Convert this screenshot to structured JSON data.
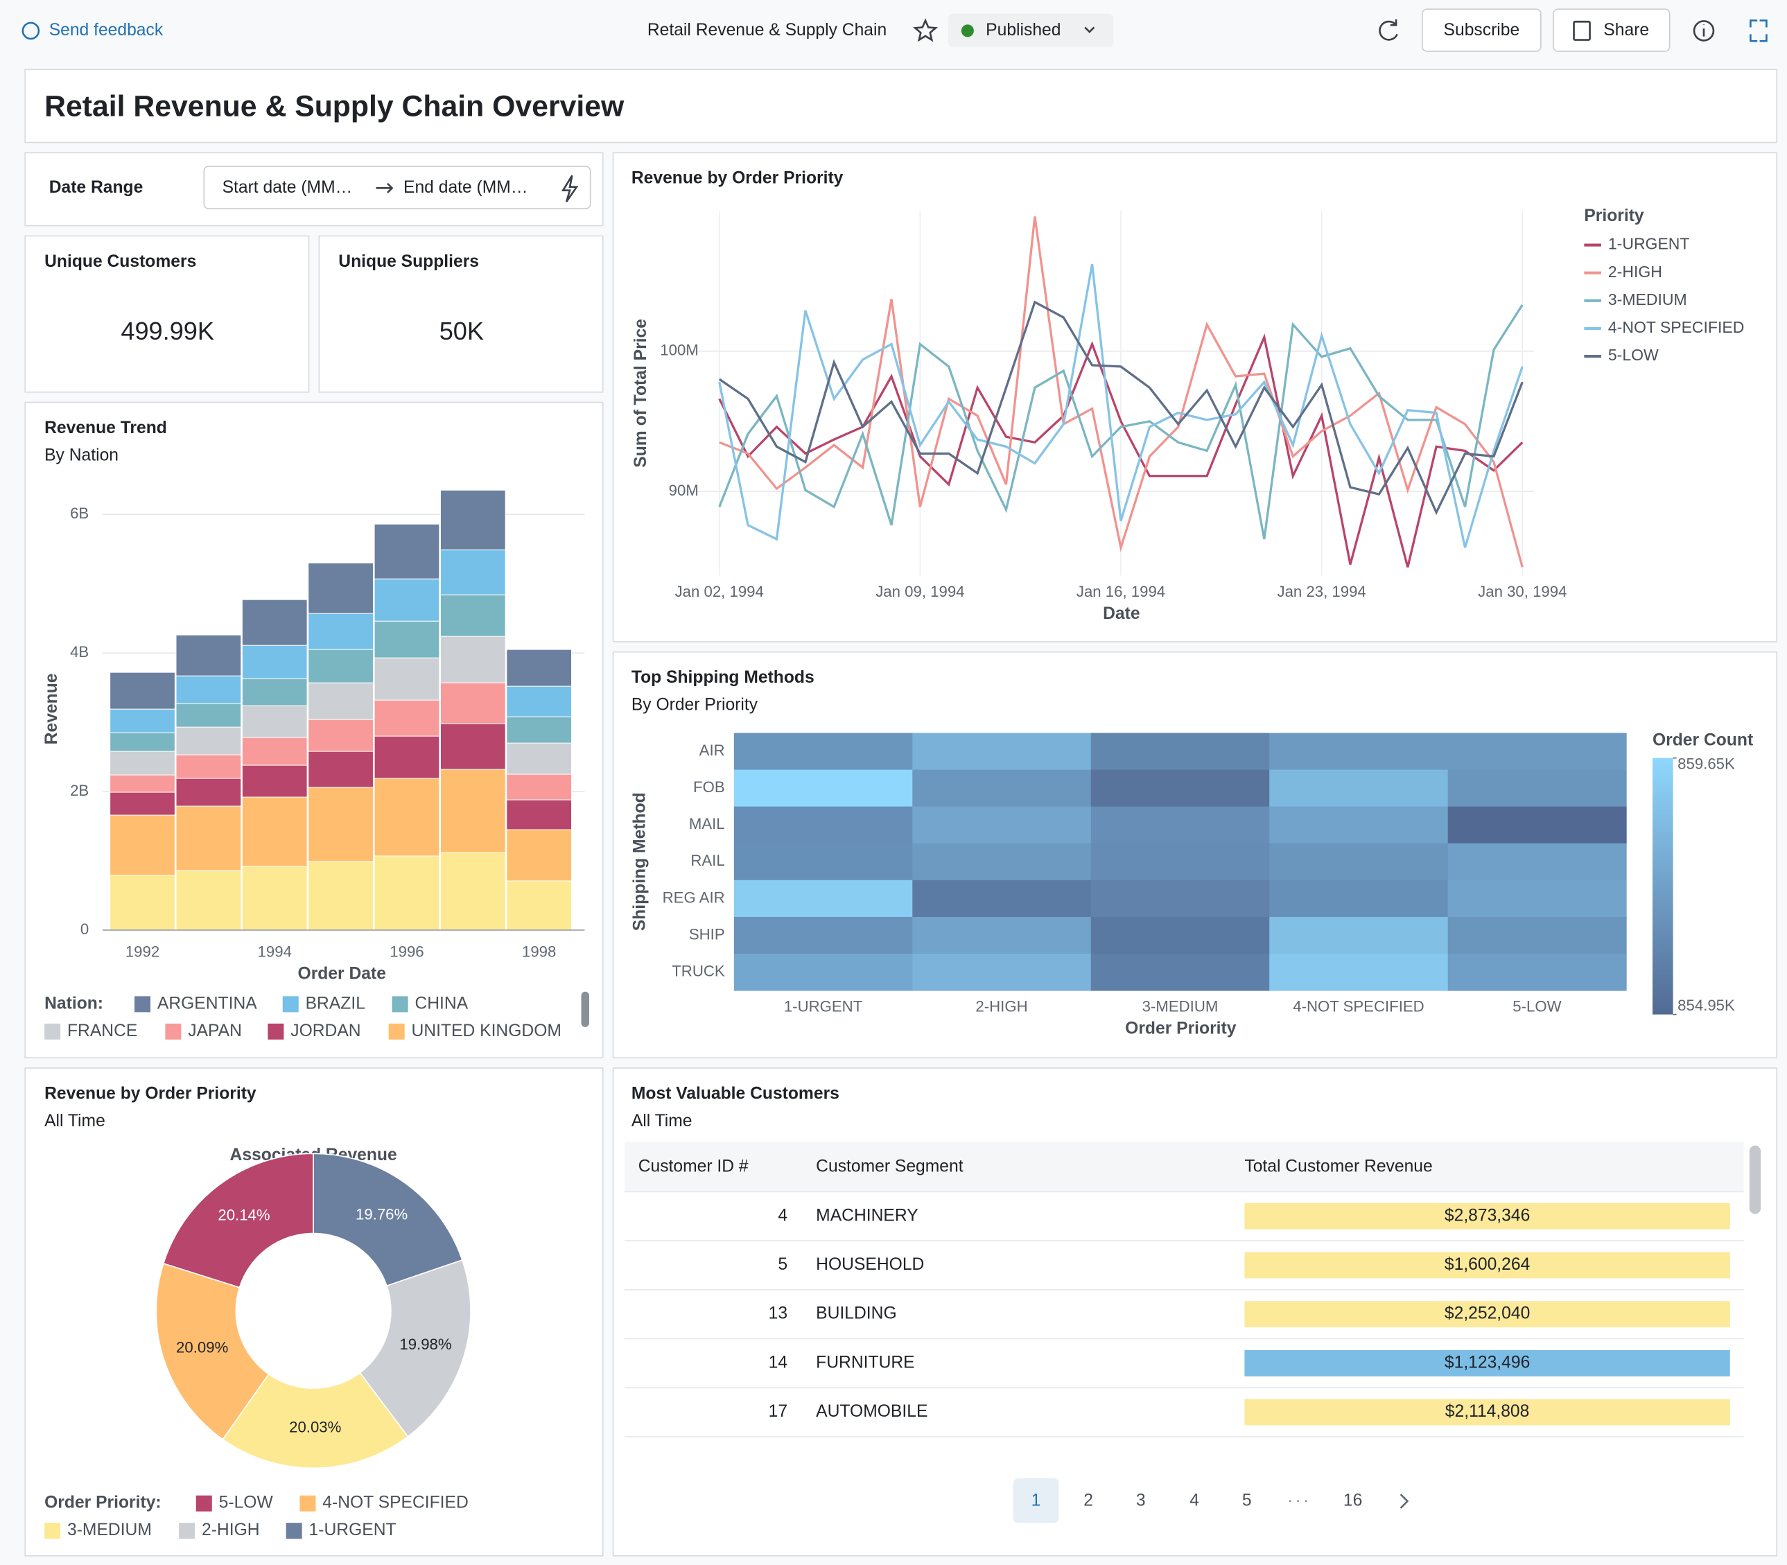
{
  "toolbar": {
    "feedback": "Send feedback",
    "dashboard_name": "Retail Revenue & Supply Chain",
    "status": "Published",
    "subscribe": "Subscribe",
    "share": "Share"
  },
  "title": "Retail Revenue & Supply Chain Overview",
  "filter": {
    "label": "Date Range",
    "start": "Start date (MM…",
    "end": "End date (MM…"
  },
  "counters": [
    {
      "title": "Unique Customers",
      "value": "499.99K"
    },
    {
      "title": "Unique Suppliers",
      "value": "50K"
    }
  ],
  "chart_data": [
    {
      "type": "stacked_bar",
      "title": "Revenue Trend",
      "subtitle": "By Nation",
      "x_label": "Order Date",
      "y_label": "Revenue",
      "legend_title": "Nation:",
      "categories": [
        "1992",
        null,
        "1994",
        null,
        "1996",
        null,
        "1998"
      ],
      "series": [
        {
          "color": "#fde992",
          "values": [
            0.79,
            0.86,
            0.92,
            0.99,
            1.07,
            1.12,
            0.71
          ]
        },
        {
          "name": "UNITED KINGDOM",
          "color": "#ffbe6f",
          "values": [
            0.87,
            0.93,
            1.0,
            1.07,
            1.12,
            1.2,
            0.74
          ]
        },
        {
          "name": "JORDAN",
          "color": "#b8456b",
          "values": [
            0.33,
            0.4,
            0.46,
            0.52,
            0.61,
            0.66,
            0.43
          ]
        },
        {
          "name": "JAPAN",
          "color": "#f89a9a",
          "values": [
            0.25,
            0.34,
            0.4,
            0.46,
            0.52,
            0.59,
            0.37
          ]
        },
        {
          "name": "FRANCE",
          "color": "#ccd0d4",
          "values": [
            0.34,
            0.4,
            0.46,
            0.53,
            0.61,
            0.67,
            0.45
          ]
        },
        {
          "name": "CHINA",
          "color": "#7ab6c2",
          "values": [
            0.27,
            0.34,
            0.39,
            0.48,
            0.53,
            0.6,
            0.38
          ]
        },
        {
          "name": "BRAZIL",
          "color": "#75c0e8",
          "values": [
            0.34,
            0.4,
            0.48,
            0.52,
            0.61,
            0.65,
            0.44
          ]
        },
        {
          "name": "ARGENTINA",
          "color": "#6b7f9e",
          "values": [
            0.53,
            0.59,
            0.66,
            0.73,
            0.79,
            0.86,
            0.53
          ]
        }
      ],
      "ylim": [
        0,
        6.4
      ],
      "yticks": [
        0,
        {
          "value": 2,
          "label": "2B"
        },
        {
          "value": 4,
          "label": "4B"
        },
        {
          "value": 6,
          "label": "6B"
        }
      ],
      "grid": true
    },
    {
      "type": "line",
      "title": "Revenue by Order Priority",
      "x_label": "Date",
      "y_label": "Sum of Total Price",
      "legend_title": "Priority",
      "x": [
        "1994-01-02",
        "1994-01-03",
        "1994-01-04",
        "1994-01-05",
        "1994-01-06",
        "1994-01-07",
        "1994-01-08",
        "1994-01-09",
        "1994-01-10",
        "1994-01-11",
        "1994-01-12",
        "1994-01-13",
        "1994-01-14",
        "1994-01-15",
        "1994-01-16",
        "1994-01-17",
        "1994-01-18",
        "1994-01-19",
        "1994-01-20",
        "1994-01-21",
        "1994-01-22",
        "1994-01-23",
        "1994-01-24",
        "1994-01-25",
        "1994-01-26",
        "1994-01-27",
        "1994-01-28",
        "1994-01-29",
        "1994-01-30"
      ],
      "series": [
        {
          "name": "1-URGENT",
          "color": "#b8456b",
          "values": [
            96.6,
            92.5,
            94.6,
            92.7,
            93.7,
            94.6,
            98.2,
            92.5,
            90.5,
            97.4,
            93.9,
            93.5,
            95.4,
            100.5,
            95.0,
            91.1,
            91.1,
            91.1,
            96.2,
            101.0,
            91.1,
            95.4,
            84.8,
            92.4,
            84.6,
            93.2,
            92.9,
            91.5,
            93.5
          ]
        },
        {
          "name": "2-HIGH",
          "color": "#f0938f",
          "values": [
            93.5,
            92.7,
            90.2,
            91.7,
            93.3,
            91.7,
            103.7,
            88.9,
            96.6,
            95.4,
            90.5,
            109.6,
            94.8,
            95.9,
            86.0,
            92.5,
            94.6,
            101.9,
            98.2,
            98.4,
            92.5,
            94.3,
            95.4,
            97.0,
            90.1,
            96.0,
            94.8,
            92.1,
            84.6
          ]
        },
        {
          "name": "3-MEDIUM",
          "color": "#7ab6c2",
          "values": [
            88.9,
            94.1,
            96.8,
            90.1,
            88.9,
            94.1,
            87.6,
            100.5,
            98.9,
            92.9,
            88.7,
            97.4,
            98.6,
            92.5,
            94.6,
            95.0,
            93.5,
            92.9,
            97.6,
            86.6,
            101.9,
            99.6,
            100.2,
            96.8,
            95.1,
            95.1,
            88.9,
            100.1,
            103.3
          ]
        },
        {
          "name": "4-NOT SPECIFIED",
          "color": "#86c3e6",
          "values": [
            97.8,
            87.6,
            86.6,
            102.9,
            96.6,
            99.4,
            100.5,
            93.3,
            96.4,
            93.7,
            93.2,
            92.0,
            94.8,
            106.2,
            87.9,
            94.6,
            95.6,
            95.1,
            95.5,
            97.8,
            93.3,
            101.1,
            94.8,
            91.3,
            95.8,
            95.6,
            86.0,
            92.9,
            98.9
          ]
        },
        {
          "name": "5-LOW",
          "color": "#5f6f88",
          "values": [
            98.0,
            96.6,
            93.2,
            92.1,
            99.2,
            94.6,
            96.4,
            92.7,
            92.7,
            91.3,
            97.4,
            103.5,
            102.4,
            99.0,
            98.9,
            97.4,
            94.8,
            97.2,
            93.2,
            97.4,
            94.6,
            97.6,
            90.3,
            89.8,
            93.1,
            88.5,
            92.7,
            92.5,
            97.8
          ]
        }
      ],
      "xlim": [
        "1994-01-01",
        "1994-01-31"
      ],
      "xticks": [
        {
          "value": "1994-01-02",
          "label": "Jan 02, 1994"
        },
        {
          "value": "1994-01-09",
          "label": "Jan 09, 1994"
        },
        {
          "value": "1994-01-16",
          "label": "Jan 16, 1994"
        },
        {
          "value": "1994-01-23",
          "label": "Jan 23, 1994"
        },
        {
          "value": "1994-01-30",
          "label": "Jan 30, 1994"
        }
      ],
      "ylim": [
        84,
        110
      ],
      "yticks": [
        {
          "value": 90,
          "label": "90M"
        },
        {
          "value": 100,
          "label": "100M"
        }
      ],
      "grid": true
    },
    {
      "type": "heatmap",
      "title": "Top Shipping Methods",
      "subtitle": "By Order Priority",
      "x_label": "Order Priority",
      "y_label": "Shipping Method",
      "legend_title": "Order Count",
      "x_categories": [
        "1-URGENT",
        "2-HIGH",
        "3-MEDIUM",
        "4-NOT SPECIFIED",
        "5-LOW"
      ],
      "y_categories": [
        "AIR",
        "FOB",
        "MAIL",
        "RAIL",
        "REG AIR",
        "SHIP",
        "TRUCK"
      ],
      "values": [
        [
          856.8,
          858.0,
          856.2,
          857.0,
          857.0
        ],
        [
          859.65,
          856.9,
          855.4,
          858.3,
          856.8
        ],
        [
          856.5,
          857.5,
          856.5,
          857.4,
          854.95
        ],
        [
          856.6,
          857.0,
          856.4,
          856.8,
          857.3
        ],
        [
          859.2,
          855.7,
          856.0,
          856.6,
          857.4
        ],
        [
          856.7,
          857.4,
          855.6,
          858.6,
          856.8
        ],
        [
          857.6,
          858.1,
          855.9,
          859.0,
          857.2
        ]
      ],
      "zlim": [
        854.95,
        859.65
      ],
      "colorbar_ticks": [
        {
          "value": 859.65,
          "label": "859.65K"
        },
        {
          "value": 854.95,
          "label": "854.95K"
        }
      ],
      "colors": [
        "#526a93",
        "#8fd7fd"
      ]
    },
    {
      "type": "pie",
      "title": "Revenue by Order Priority",
      "subtitle": "All Time",
      "chart_title": "Associated Revenue",
      "legend_title": "Order Priority:",
      "donut": true,
      "categories": [
        "5-LOW",
        "4-NOT SPECIFIED",
        "3-MEDIUM",
        "2-HIGH",
        "1-URGENT"
      ],
      "values": [
        20.14,
        20.09,
        20.03,
        19.98,
        19.76
      ],
      "value_labels": [
        "20.14%",
        "20.09%",
        "20.03%",
        "19.98%",
        "19.76%"
      ],
      "colors": [
        "#b8456b",
        "#ffbe6f",
        "#fde992",
        "#ccd0d4",
        "#6b7f9e"
      ]
    }
  ],
  "table": {
    "title": "Most Valuable Customers",
    "subtitle": "All Time",
    "columns": [
      "Customer ID #",
      "Customer Segment",
      "Total Customer Revenue"
    ],
    "rows": [
      [
        4,
        "MACHINERY",
        "$2,873,346"
      ],
      [
        5,
        "HOUSEHOLD",
        "$1,600,264"
      ],
      [
        13,
        "BUILDING",
        "$2,252,040"
      ],
      [
        14,
        "FURNITURE",
        "$1,123,496"
      ],
      [
        17,
        "AUTOMOBILE",
        "$2,114,808"
      ]
    ],
    "cell_colors": [
      "#fce999",
      "#fce999",
      "#fce999",
      "#7cbde6",
      "#fce999"
    ]
  },
  "pagination": {
    "pages": [
      "1",
      "2",
      "3",
      "4",
      "5",
      "16"
    ]
  }
}
